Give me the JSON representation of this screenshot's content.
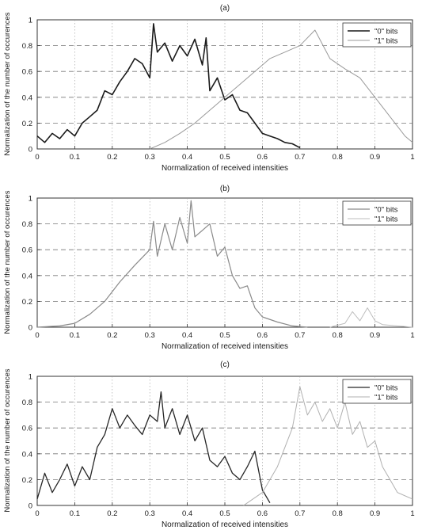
{
  "chart_data": [
    {
      "panel_label": "(a)",
      "type": "line",
      "xlabel": "Normalization of received intensities",
      "ylabel": "Normalization of the number of occurences",
      "xlim": [
        0,
        1
      ],
      "ylim": [
        0,
        1
      ],
      "xticks": [
        "0",
        "0.1",
        "0.2",
        "0.3",
        "0.4",
        "0.5",
        "0.6",
        "0.7",
        "0.8",
        "0.9",
        "1"
      ],
      "yticks": [
        "0",
        "0.2",
        "0.4",
        "0.6",
        "0.8",
        "1"
      ],
      "grid": true,
      "legend_position": "top-right",
      "series": [
        {
          "name": "\"0\" bits",
          "color": "#1a1a1a",
          "width": 1.6,
          "x": [
            0,
            0.02,
            0.04,
            0.06,
            0.08,
            0.1,
            0.12,
            0.14,
            0.16,
            0.18,
            0.2,
            0.22,
            0.24,
            0.26,
            0.28,
            0.3,
            0.31,
            0.32,
            0.34,
            0.36,
            0.38,
            0.4,
            0.42,
            0.44,
            0.45,
            0.46,
            0.48,
            0.5,
            0.52,
            0.54,
            0.56,
            0.58,
            0.6,
            0.62,
            0.64,
            0.66,
            0.68,
            0.7
          ],
          "y": [
            0.1,
            0.05,
            0.12,
            0.08,
            0.15,
            0.1,
            0.2,
            0.25,
            0.3,
            0.45,
            0.42,
            0.52,
            0.6,
            0.7,
            0.66,
            0.55,
            0.97,
            0.75,
            0.82,
            0.68,
            0.8,
            0.72,
            0.85,
            0.65,
            0.86,
            0.45,
            0.55,
            0.38,
            0.42,
            0.3,
            0.28,
            0.2,
            0.12,
            0.1,
            0.08,
            0.05,
            0.04,
            0.01
          ]
        },
        {
          "name": "\"1\" bits",
          "color": "#9a9a9a",
          "width": 1,
          "x": [
            0.3,
            0.34,
            0.38,
            0.42,
            0.46,
            0.5,
            0.54,
            0.58,
            0.62,
            0.66,
            0.7,
            0.74,
            0.78,
            0.82,
            0.86,
            0.9,
            0.94,
            0.98,
            1.0
          ],
          "y": [
            0.0,
            0.05,
            0.12,
            0.2,
            0.3,
            0.4,
            0.5,
            0.6,
            0.7,
            0.75,
            0.8,
            0.92,
            0.7,
            0.62,
            0.55,
            0.4,
            0.25,
            0.1,
            0.05
          ]
        }
      ]
    },
    {
      "panel_label": "(b)",
      "type": "line",
      "xlabel": "Normalization of received intensities",
      "ylabel": "Normalization of the number of occurences",
      "xlim": [
        0,
        1
      ],
      "ylim": [
        0,
        1
      ],
      "xticks": [
        "0",
        "0.1",
        "0.2",
        "0.3",
        "0.4",
        "0.5",
        "0.6",
        "0.7",
        "0.8",
        "0.9",
        "1"
      ],
      "yticks": [
        "0",
        "0.2",
        "0.4",
        "0.6",
        "0.8",
        "1"
      ],
      "grid": true,
      "legend_position": "top-right",
      "series": [
        {
          "name": "\"0\" bits",
          "color": "#8a8a8a",
          "width": 1.2,
          "x": [
            0,
            0.06,
            0.1,
            0.14,
            0.18,
            0.22,
            0.26,
            0.3,
            0.31,
            0.32,
            0.34,
            0.36,
            0.38,
            0.4,
            0.41,
            0.42,
            0.44,
            0.46,
            0.48,
            0.5,
            0.52,
            0.54,
            0.56,
            0.58,
            0.6,
            0.64,
            0.68,
            0.72
          ],
          "y": [
            0.0,
            0.01,
            0.03,
            0.1,
            0.2,
            0.35,
            0.48,
            0.6,
            0.82,
            0.55,
            0.8,
            0.6,
            0.85,
            0.65,
            0.98,
            0.7,
            0.75,
            0.8,
            0.55,
            0.62,
            0.4,
            0.3,
            0.32,
            0.15,
            0.08,
            0.04,
            0.01,
            0.0
          ]
        },
        {
          "name": "\"1\" bits",
          "color": "#bdbdbd",
          "width": 1,
          "x": [
            0.78,
            0.82,
            0.84,
            0.86,
            0.88,
            0.9,
            0.92,
            1.0
          ],
          "y": [
            0.0,
            0.03,
            0.12,
            0.05,
            0.15,
            0.05,
            0.02,
            0.0
          ]
        }
      ]
    },
    {
      "panel_label": "(c)",
      "type": "line",
      "xlabel": "Normalization of received intensities",
      "ylabel": "Normalization of the number of occurences",
      "xlim": [
        0,
        1
      ],
      "ylim": [
        0,
        1
      ],
      "xticks": [
        "0",
        "0.1",
        "0.2",
        "0.3",
        "0.4",
        "0.5",
        "0.6",
        "0.7",
        "0.8",
        "0.9",
        "1"
      ],
      "yticks": [
        "0",
        "0.2",
        "0.4",
        "0.6",
        "0.8",
        "1"
      ],
      "grid": true,
      "legend_position": "top-right",
      "series": [
        {
          "name": "\"0\" bits",
          "color": "#262626",
          "width": 1.3,
          "x": [
            0,
            0.02,
            0.04,
            0.06,
            0.08,
            0.1,
            0.12,
            0.14,
            0.16,
            0.18,
            0.2,
            0.22,
            0.24,
            0.26,
            0.28,
            0.3,
            0.32,
            0.33,
            0.34,
            0.36,
            0.38,
            0.4,
            0.42,
            0.44,
            0.46,
            0.48,
            0.5,
            0.52,
            0.54,
            0.56,
            0.58,
            0.6,
            0.62
          ],
          "y": [
            0.05,
            0.25,
            0.1,
            0.2,
            0.32,
            0.15,
            0.3,
            0.2,
            0.45,
            0.55,
            0.75,
            0.6,
            0.7,
            0.62,
            0.55,
            0.7,
            0.65,
            0.88,
            0.6,
            0.75,
            0.55,
            0.7,
            0.5,
            0.6,
            0.35,
            0.3,
            0.38,
            0.25,
            0.2,
            0.3,
            0.42,
            0.12,
            0.02
          ]
        },
        {
          "name": "\"1\" bits",
          "color": "#b0b0b0",
          "width": 1,
          "x": [
            0.55,
            0.6,
            0.64,
            0.68,
            0.7,
            0.72,
            0.74,
            0.76,
            0.78,
            0.8,
            0.82,
            0.84,
            0.86,
            0.88,
            0.9,
            0.92,
            0.94,
            0.96,
            1.0
          ],
          "y": [
            0.0,
            0.1,
            0.3,
            0.6,
            0.92,
            0.7,
            0.8,
            0.65,
            0.75,
            0.6,
            0.8,
            0.55,
            0.65,
            0.45,
            0.5,
            0.3,
            0.2,
            0.1,
            0.05
          ]
        }
      ]
    }
  ]
}
